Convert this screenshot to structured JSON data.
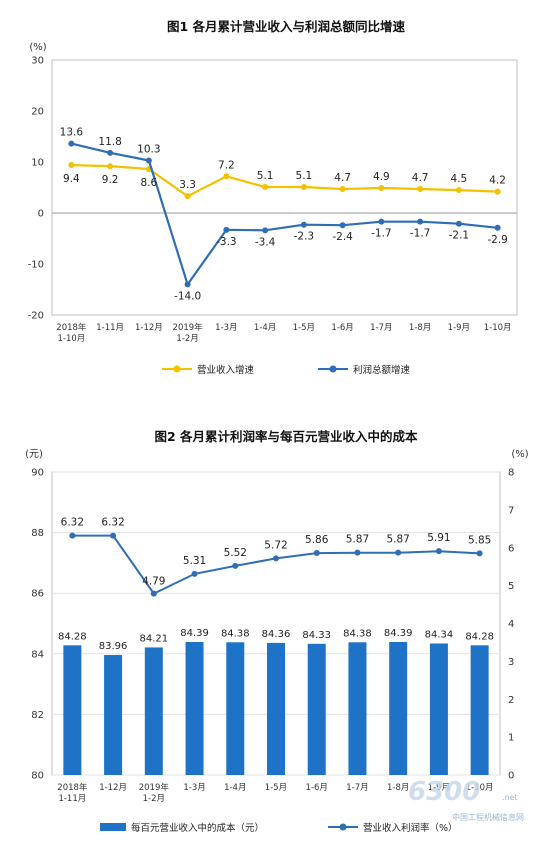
{
  "colors": {
    "revenue": "#f2c100",
    "profit": "#2f6db5",
    "bar": "#1f73c7",
    "profit_rate": "#2f6db5"
  },
  "watermark": {
    "brand": "6300",
    "domain": ".net",
    "site": "中国工程机械信息网"
  },
  "chart_data": [
    {
      "type": "line",
      "title": "图1  各月累计营业收入与利润总额同比增速",
      "y_unit": "(%)",
      "ylim": [
        -20,
        30
      ],
      "yticks": [
        -20,
        -10,
        0,
        10,
        20,
        30
      ],
      "categories": [
        "2018年\n1-10月",
        "1-11月",
        "1-12月",
        "2019年\n1-2月",
        "1-3月",
        "1-4月",
        "1-5月",
        "1-6月",
        "1-7月",
        "1-8月",
        "1-9月",
        "1-10月"
      ],
      "series": [
        {
          "name": "营业收入增速",
          "values": [
            9.4,
            9.2,
            8.6,
            3.3,
            7.2,
            5.1,
            5.1,
            4.7,
            4.9,
            4.7,
            4.5,
            4.2
          ]
        },
        {
          "name": "利润总额增速",
          "values": [
            13.6,
            11.8,
            10.3,
            -14.0,
            -3.3,
            -3.4,
            -2.3,
            -2.4,
            -1.7,
            -1.7,
            -2.1,
            -2.9
          ]
        }
      ],
      "data_labels": {
        "revenue": [
          "9.4",
          "9.2",
          "8.6",
          "3.3",
          "7.2",
          "5.1",
          "5.1",
          "4.7",
          "4.9",
          "4.7",
          "4.5",
          "4.2"
        ],
        "profit": [
          "13.6",
          "11.8",
          "10.3",
          "-14.0",
          "-3.3",
          "-3.4",
          "-2.3",
          "-2.4",
          "-1.7",
          "-1.7",
          "-2.1",
          "-2.9"
        ]
      },
      "legend_position": "bottom"
    },
    {
      "type": "bar",
      "title": "图2  各月累计利润率与每百元营业收入中的成本",
      "y_left_unit": "(元)",
      "y_right_unit": "(%)",
      "ylim_left": [
        80,
        90
      ],
      "yticks_left": [
        80,
        82,
        84,
        86,
        88,
        90
      ],
      "ylim_right": [
        0,
        8
      ],
      "yticks_right": [
        0,
        1,
        2,
        3,
        4,
        5,
        6,
        7,
        8
      ],
      "categories": [
        "2018年\n1-11月",
        "1-12月",
        "2019年\n1-2月",
        "1-3月",
        "1-4月",
        "1-5月",
        "1-6月",
        "1-7月",
        "1-8月",
        "1-9月",
        "1-10月"
      ],
      "series": [
        {
          "name": "每百元营业收入中的成本（元）",
          "kind": "bar",
          "axis": "left",
          "values": [
            84.28,
            83.96,
            84.21,
            84.39,
            84.38,
            84.36,
            84.33,
            84.38,
            84.39,
            84.34,
            84.28
          ]
        },
        {
          "name": "营业收入利润率（%）",
          "kind": "line",
          "axis": "right",
          "values": [
            6.32,
            6.32,
            4.79,
            5.31,
            5.52,
            5.72,
            5.86,
            5.87,
            5.87,
            5.91,
            5.85
          ]
        }
      ],
      "data_labels": {
        "bars": [
          "84.28",
          "83.96",
          "84.21",
          "84.39",
          "84.38",
          "84.36",
          "84.33",
          "84.38",
          "84.39",
          "84.34",
          "84.28"
        ],
        "line": [
          "6.32",
          "6.32",
          "4.79",
          "5.31",
          "5.52",
          "5.72",
          "5.86",
          "5.87",
          "5.87",
          "5.91",
          "5.85"
        ]
      },
      "legend_position": "bottom"
    }
  ]
}
